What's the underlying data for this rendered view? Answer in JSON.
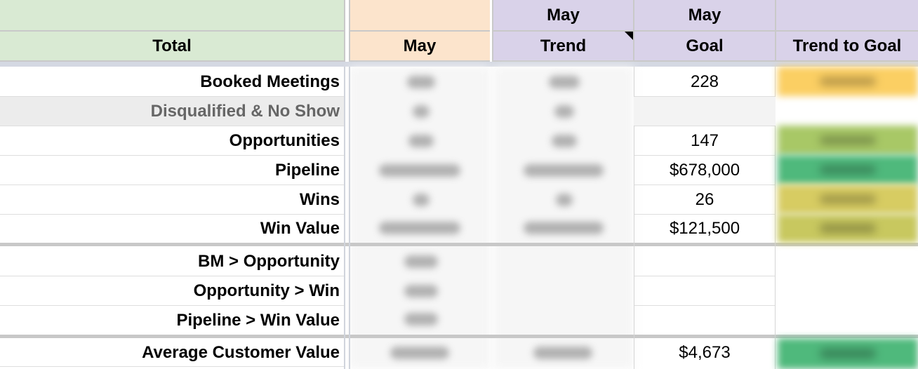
{
  "header": {
    "total": "Total",
    "col_may_top": "",
    "col_may": "May",
    "col_trend_top": "May",
    "col_trend": "Trend",
    "col_goal_top": "May",
    "col_goal": "Goal",
    "col_ttg_top": "",
    "col_ttg": "Trend to Goal"
  },
  "colors": {
    "header_green": "#d9ead3",
    "header_peach": "#fce4cc",
    "header_lavender": "#d9d2e9",
    "heat_orange": "#fbcf63",
    "heat_lime": "#a8c866",
    "heat_green": "#4fb97c",
    "heat_yellow": "#d7cc62"
  },
  "rows": [
    {
      "label": "Booked Meetings",
      "goal": "228",
      "muted": false
    },
    {
      "label": "Disqualified & No Show",
      "goal": "",
      "muted": true
    },
    {
      "label": "Opportunities",
      "goal": "147",
      "muted": false
    },
    {
      "label": "Pipeline",
      "goal": "$678,000",
      "muted": false
    },
    {
      "label": "Wins",
      "goal": "26",
      "muted": false
    },
    {
      "label": "Win Value",
      "goal": "$121,500",
      "muted": false
    },
    {
      "label": "BM > Opportunity",
      "goal": "",
      "muted": false
    },
    {
      "label": "Opportunity > Win",
      "goal": "",
      "muted": false
    },
    {
      "label": "Pipeline > Win Value",
      "goal": "",
      "muted": false
    },
    {
      "label": "Average Customer Value",
      "goal": "$4,673",
      "muted": false
    }
  ]
}
